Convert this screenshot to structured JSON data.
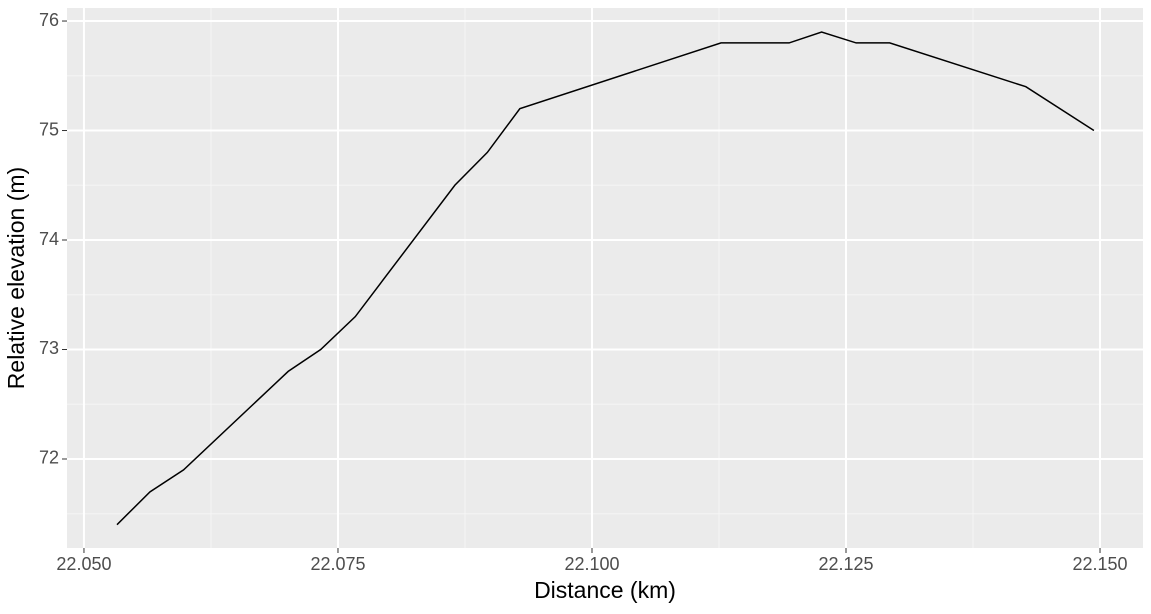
{
  "chart_data": {
    "type": "line",
    "x_label": "Distance (km)",
    "y_label": "Relative elevation (m)",
    "x": [
      22.05325,
      22.0565,
      22.0598,
      22.0701,
      22.0733,
      22.0767,
      22.0865,
      22.0897,
      22.0929,
      22.1127,
      22.1194,
      22.1226,
      22.126,
      22.1293,
      22.1427,
      22.1494
    ],
    "series": [
      {
        "color": "#000000",
        "values": [
          71.4,
          71.7,
          71.9,
          72.8,
          73.0,
          73.3,
          74.5,
          74.8,
          75.2,
          75.8,
          75.8,
          75.9,
          75.8,
          75.8,
          75.4,
          75.0
        ]
      }
    ],
    "xlim": [
      22.04833,
      22.15423
    ],
    "ylim": [
      71.187,
      76.119
    ],
    "xticks": [
      {
        "value": 22.05,
        "label": "22.050"
      },
      {
        "value": 22.075,
        "label": "22.075"
      },
      {
        "value": 22.1,
        "label": "22.100"
      },
      {
        "value": 22.125,
        "label": "22.125"
      },
      {
        "value": 22.15,
        "label": "22.150"
      }
    ],
    "yticks": [
      72,
      73,
      74,
      75,
      76
    ],
    "grid": true,
    "minor_grid": true
  }
}
